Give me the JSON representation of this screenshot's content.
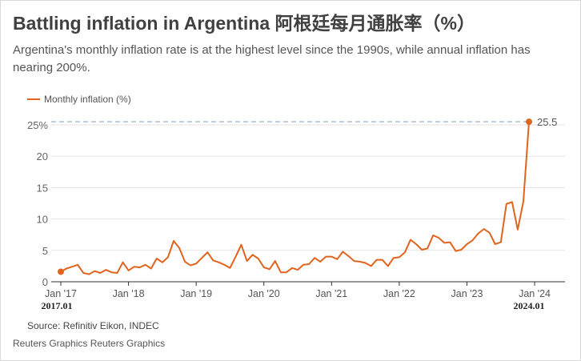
{
  "header": {
    "title": "Battling inflation in Argentina 阿根廷每月通胀率（%）",
    "subtitle": "Argentina's monthly inflation rate is at the highest level since the 1990s, while annual inflation has nearing 200%."
  },
  "footer": {
    "source": "Source: Refinitiv Eikon, INDEC",
    "credit": "Reuters Graphics Reuters Graphics"
  },
  "colors": {
    "series": "#e0641e",
    "reference_line": "#8fa9c8",
    "grid": "#e3e3e3"
  },
  "chart_data": {
    "type": "line",
    "series": [
      {
        "name": "Monthly inflation (%)",
        "values": [
          1.6,
          2.1,
          2.4,
          2.7,
          1.4,
          1.2,
          1.7,
          1.4,
          1.9,
          1.5,
          1.4,
          3.1,
          1.8,
          2.4,
          2.3,
          2.7,
          2.1,
          3.7,
          3.1,
          3.9,
          6.5,
          5.4,
          3.2,
          2.6,
          2.9,
          3.8,
          4.7,
          3.4,
          3.1,
          2.7,
          2.2,
          4.0,
          5.9,
          3.3,
          4.3,
          3.7,
          2.3,
          2.0,
          3.3,
          1.5,
          1.5,
          2.2,
          1.9,
          2.7,
          2.8,
          3.8,
          3.2,
          4.0,
          4.0,
          3.6,
          4.8,
          4.1,
          3.3,
          3.2,
          3.0,
          2.5,
          3.5,
          3.5,
          2.5,
          3.8,
          3.9,
          4.7,
          6.7,
          6.0,
          5.1,
          5.3,
          7.4,
          7.0,
          6.2,
          6.3,
          4.9,
          5.1,
          6.0,
          6.6,
          7.7,
          8.4,
          7.8,
          6.0,
          6.3,
          12.4,
          12.7,
          8.3,
          12.8,
          25.5
        ]
      }
    ],
    "x_tick_labels": [
      "Jan '17",
      "Jan '18",
      "Jan '19",
      "Jan '20",
      "Jan '21",
      "Jan '22",
      "Jan '23",
      "Jan '24"
    ],
    "x_edge_labels": [
      "2017.01",
      "2024.01"
    ],
    "y_ticks": [
      0,
      5,
      10,
      15,
      20,
      25
    ],
    "y_tick_labels": [
      "0",
      "5",
      "10",
      "15",
      "20",
      "25%"
    ],
    "ylim": [
      0,
      25
    ],
    "reference_line": 25.5,
    "end_value_label": "25.5",
    "grid": true,
    "legend_position": "top-left"
  }
}
